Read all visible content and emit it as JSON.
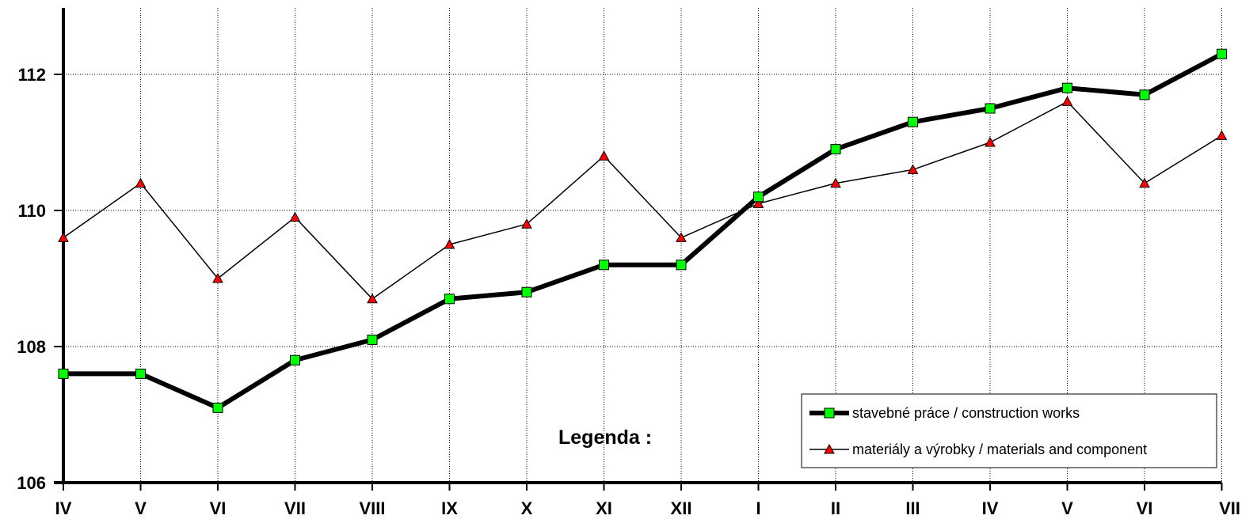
{
  "chart_data": {
    "type": "line",
    "categories": [
      "IV",
      "V",
      "VI",
      "VII",
      "VIII",
      "IX",
      "X",
      "XI",
      "XII",
      "I",
      "II",
      "III",
      "IV",
      "V",
      "VI",
      "VII"
    ],
    "ylim": [
      106,
      113
    ],
    "yticks": [
      106,
      108,
      110,
      112
    ],
    "grid": true,
    "grid_style": "dotted",
    "legend_position": "bottom-right",
    "legend_title": "Legenda :",
    "series": [
      {
        "name": "stavebné práce / construction works",
        "values": [
          107.6,
          107.6,
          107.1,
          107.8,
          108.1,
          108.7,
          108.8,
          109.2,
          109.2,
          110.2,
          110.9,
          111.3,
          111.5,
          111.8,
          111.7,
          112.3
        ],
        "color": "#000000",
        "marker": "square",
        "marker_color": "#00ff00"
      },
      {
        "name": "materiály a výrobky / materials and component",
        "values": [
          109.6,
          110.4,
          109.0,
          109.9,
          108.7,
          109.5,
          109.8,
          110.8,
          109.6,
          110.1,
          110.4,
          110.6,
          111.0,
          111.6,
          110.4,
          111.1
        ],
        "color": "#000000",
        "marker": "triangle",
        "marker_color": "#ff0000"
      }
    ]
  }
}
